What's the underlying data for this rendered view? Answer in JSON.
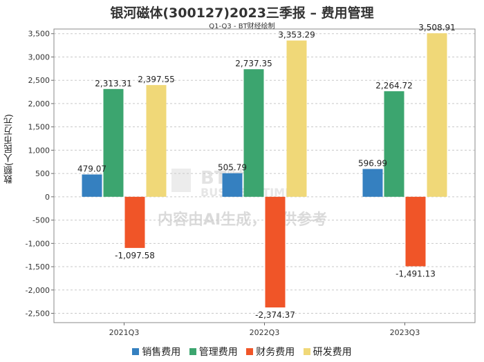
{
  "chart_data": {
    "type": "bar",
    "title": "银河磁体(300127)2023三季报 – 费用管理",
    "subtitle": "Q1-Q3 - BT财经绘制",
    "xlabel": "",
    "ylabel": "数额(人民币万元)",
    "categories": [
      "2021Q3",
      "2022Q3",
      "2023Q3"
    ],
    "ylim": [
      -2700,
      3600
    ],
    "yticks": [
      3500,
      3000,
      2500,
      2000,
      1500,
      1000,
      500,
      0,
      -500,
      -1000,
      -1500,
      -2000,
      -2500
    ],
    "ytick_labels": [
      "3,500",
      "3,000",
      "2,500",
      "2,000",
      "1,500",
      "1,000",
      "500",
      "0",
      "-500",
      "-1,000",
      "-1,500",
      "-2,000",
      "-2,500"
    ],
    "grid": true,
    "legend_position": "bottom",
    "series": [
      {
        "name": "销售费用",
        "color": "#3580c0",
        "values": [
          479.07,
          505.79,
          596.99
        ],
        "labels": [
          "479.07",
          "505.79",
          "596.99"
        ]
      },
      {
        "name": "管理费用",
        "color": "#3ca56f",
        "values": [
          2313.31,
          2737.35,
          2264.72
        ],
        "labels": [
          "2,313.31",
          "2,737.35",
          "2,264.72"
        ]
      },
      {
        "name": "财务费用",
        "color": "#f05528",
        "values": [
          -1097.58,
          -2374.37,
          -1491.13
        ],
        "labels": [
          "-1,097.58",
          "-2,374.37",
          "-1,491.13"
        ]
      },
      {
        "name": "研发费用",
        "color": "#f0d878",
        "values": [
          2397.55,
          3353.29,
          3508.91
        ],
        "labels": [
          "2,397.55",
          "3,353.29",
          "3,508.91"
        ]
      }
    ],
    "watermark": {
      "brand": "BT财经",
      "brand_en": "BUSINESSTIMES",
      "note": "内容由AI生成，仅供参考"
    }
  }
}
